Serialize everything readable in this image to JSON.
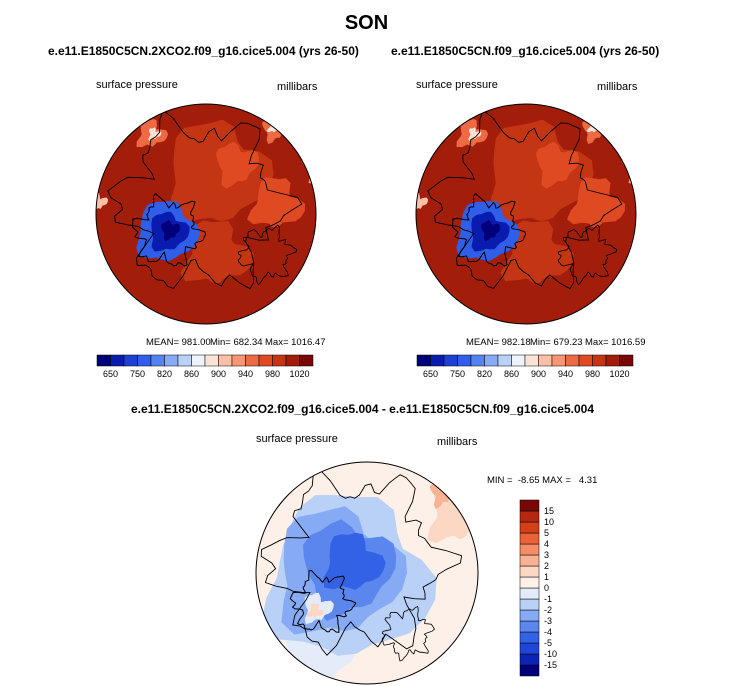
{
  "title": "SON",
  "palette": {
    "levels": [
      650,
      700,
      750,
      800,
      820,
      840,
      860,
      880,
      900,
      920,
      940,
      960,
      980,
      1000,
      1020
    ],
    "colors": [
      "#00007a",
      "#0a1cb0",
      "#1c3fd6",
      "#2f5fe8",
      "#5482f0",
      "#86aaf3",
      "#b9d0f7",
      "#eef4fd",
      "#fde3d6",
      "#fbbfa7",
      "#f79676",
      "#ee6a44",
      "#e04a22",
      "#c43514",
      "#a21d0a",
      "#760808"
    ],
    "tick_labels": [
      "650",
      "750",
      "820",
      "860",
      "900",
      "940",
      "980",
      "1020"
    ],
    "tick_positions": [
      1,
      3,
      5,
      7,
      9,
      11,
      13,
      15
    ],
    "diff_labels": [
      "-15",
      "-10",
      "-5",
      "-4",
      "-3",
      "-2",
      "-1",
      "0",
      "1",
      "2",
      "3",
      "4",
      "5",
      "10",
      "15"
    ],
    "diff_colors": [
      "#00007a",
      "#0b24b5",
      "#1f46d8",
      "#3462e6",
      "#5a86ee",
      "#86aaf3",
      "#b9d0f7",
      "#e4ecfa",
      "#fdf0e8",
      "#fcd7c3",
      "#f9b394",
      "#f48c66",
      "#ea6238",
      "#d4401a",
      "#b52810",
      "#7a0707"
    ]
  },
  "panels": [
    {
      "run": "e.e11.E1850C5CN.2XCO2.f09_g16.cice5.004 (yrs 26-50)",
      "field": "surface pressure",
      "units": "millibars",
      "mean": "MEAN= 981.00",
      "min": "Min= 682.34",
      "max": "Max= 1016.47"
    },
    {
      "run": "e.e11.E1850C5CN.f09_g16.cice5.004 (yrs 26-50)",
      "field": "surface pressure",
      "units": "millibars",
      "mean": "MEAN= 982.18",
      "min": "Min= 679.23",
      "max": "Max= 1016.59"
    }
  ],
  "diff": {
    "title": "e.e11.E1850C5CN.2XCO2.f09_g16.cice5.004 - e.e11.E1850C5CN.f09_g16.cice5.004",
    "field": "surface pressure",
    "units": "millibars",
    "minmax": "MIN =  -8.65 MAX =   4.31"
  }
}
